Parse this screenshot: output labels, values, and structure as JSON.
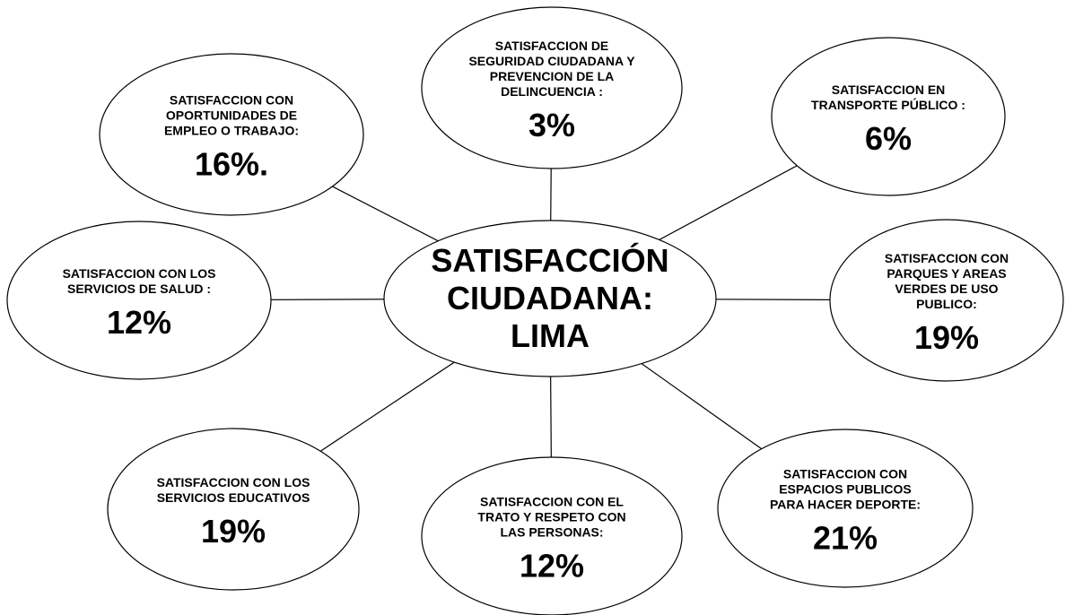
{
  "center": {
    "label": [
      "SATISFACCIÓN",
      "CIUDADANA:",
      "LIMA"
    ]
  },
  "nodes": [
    {
      "label": [
        "SATISFACCION DE",
        "SEGURIDAD CIUDADANA Y",
        "PREVENCION DE LA",
        "DELINCUENCIA :"
      ],
      "value": "3%"
    },
    {
      "label": [
        "SATISFACCION EN",
        "TRANSPORTE PÚBLICO :"
      ],
      "value": "6%"
    },
    {
      "label": [
        "SATISFACCION CON",
        "PARQUES Y AREAS",
        "VERDES DE USO",
        "PUBLICO:"
      ],
      "value": "19%"
    },
    {
      "label": [
        "SATISFACCION CON",
        "ESPACIOS PUBLICOS",
        "PARA HACER DEPORTE:"
      ],
      "value": "21%"
    },
    {
      "label": [
        "SATISFACCION CON EL",
        "TRATO Y RESPETO CON",
        "LAS PERSONAS:"
      ],
      "value": "12%"
    },
    {
      "label": [
        "SATISFACCION CON LOS",
        "SERVICIOS EDUCATIVOS"
      ],
      "value": "19%"
    },
    {
      "label": [
        "SATISFACCION CON LOS",
        "SERVICIOS DE SALUD :"
      ],
      "value": "12%"
    },
    {
      "label": [
        "SATISFACCION CON",
        "OPORTUNIDADES DE",
        "EMPLEO O TRABAJO:"
      ],
      "value": "16%."
    }
  ]
}
